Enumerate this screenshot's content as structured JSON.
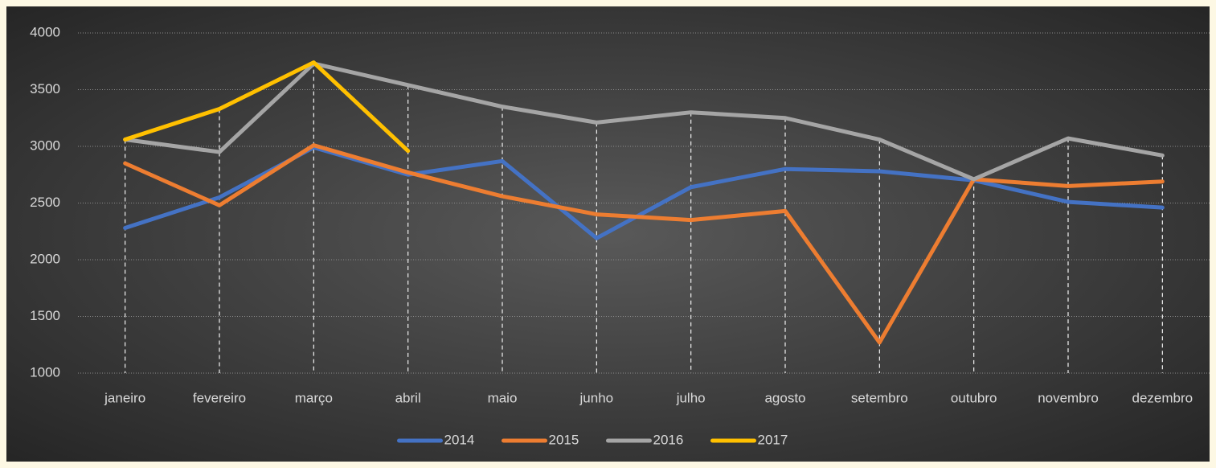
{
  "chart_data": {
    "type": "line",
    "categories": [
      "janeiro",
      "fevereiro",
      "março",
      "abril",
      "maio",
      "junho",
      "julho",
      "agosto",
      "setembro",
      "outubro",
      "novembro",
      "dezembro"
    ],
    "series": [
      {
        "name": "2014",
        "color": "#4472c4",
        "values": [
          2280,
          2550,
          2990,
          2750,
          2870,
          2190,
          2640,
          2800,
          2780,
          2700,
          2510,
          2460
        ]
      },
      {
        "name": "2015",
        "color": "#ed7d31",
        "values": [
          2850,
          2480,
          3010,
          2770,
          2560,
          2400,
          2350,
          2430,
          1270,
          2710,
          2650,
          2690
        ]
      },
      {
        "name": "2016",
        "color": "#a5a5a5",
        "values": [
          3060,
          2950,
          3730,
          3540,
          3350,
          3210,
          3300,
          3250,
          3060,
          2710,
          3070,
          2920
        ]
      },
      {
        "name": "2017",
        "color": "#ffc000",
        "values": [
          3060,
          3330,
          3740,
          2960,
          null,
          null,
          null,
          null,
          null,
          null,
          null,
          null
        ]
      }
    ],
    "ylim": [
      1000,
      4000
    ],
    "yticks": [
      1000,
      1500,
      2000,
      2500,
      3000,
      3500,
      4000
    ],
    "grid": true,
    "drop_lines": true,
    "legend": "bottom"
  }
}
